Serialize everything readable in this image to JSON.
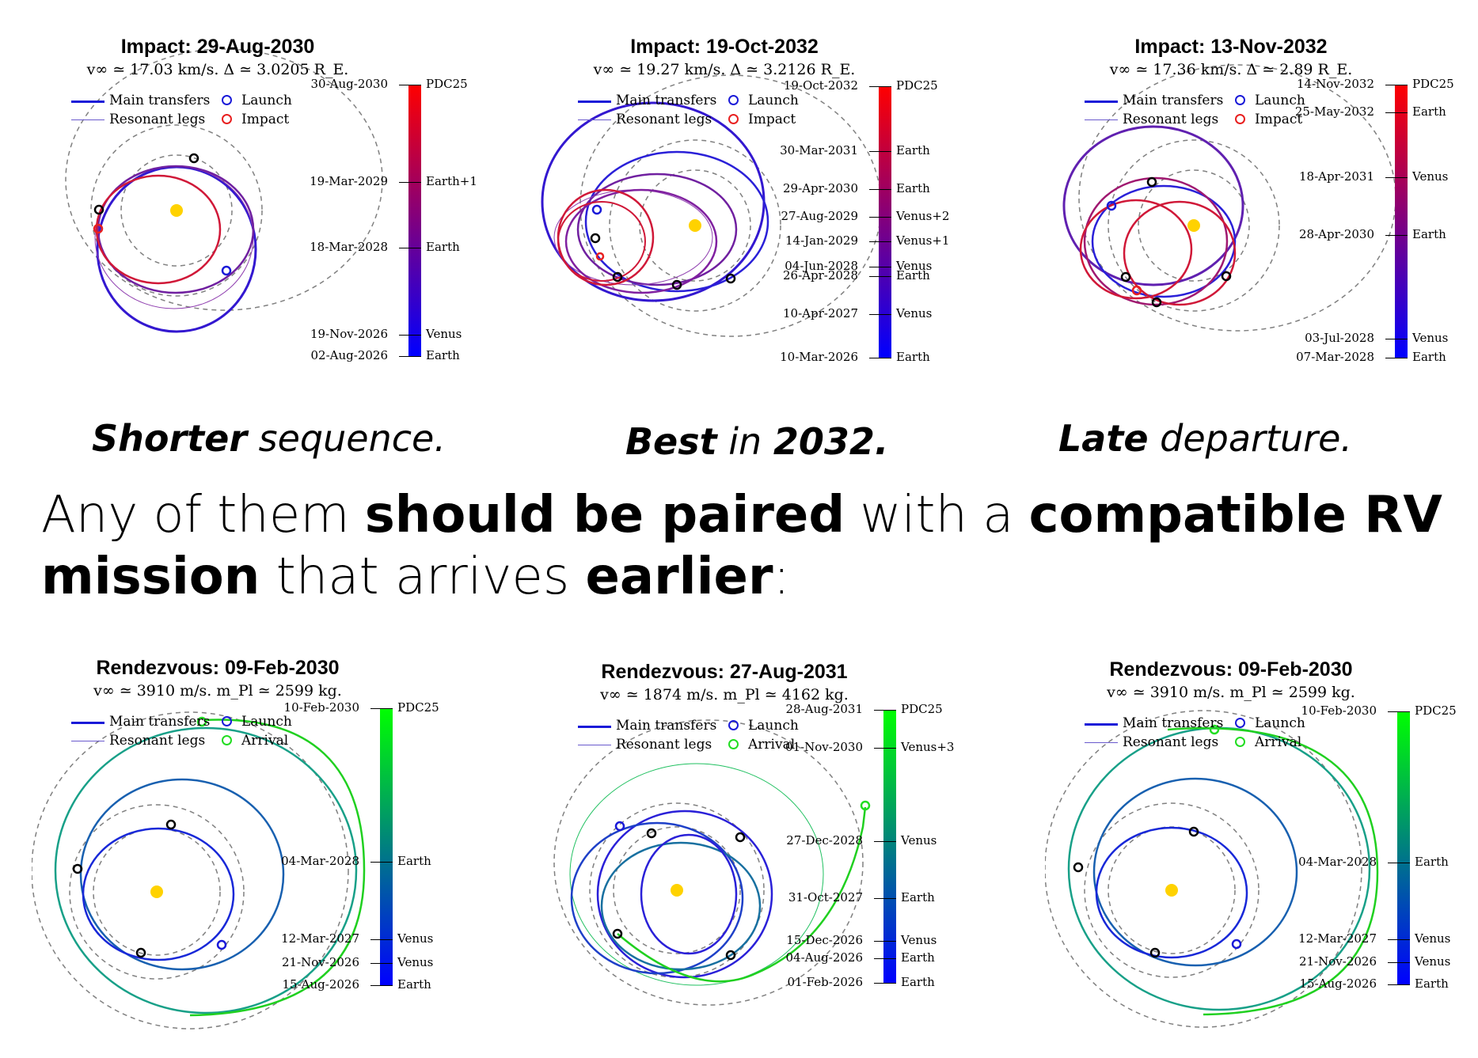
{
  "labels": {
    "main_transfers": "Main transfers",
    "resonant_legs": "Resonant legs",
    "launch": "Launch",
    "impact": "Impact",
    "arrival": "Arrival"
  },
  "captions": {
    "c1_bold": "Shorter",
    "c1_rest": " sequence.",
    "c2_bold1": "Best",
    "c2_mid": " in ",
    "c2_bold2": "2032.",
    "c3_bold": "Late",
    "c3_rest": " departure."
  },
  "headline": {
    "w1": "Any",
    "w2": "of",
    "w3": "them",
    "w4": "should be paired",
    "w5": "with",
    "w6": "a",
    "w7": "compatible RV",
    "w8": "mission",
    "w9": " that arrives ",
    "w10": "earlier",
    "w11": ":"
  },
  "colors": {
    "sun": "#ffd200",
    "orbit_dashed": "#808080",
    "launch": "#1a1ad8",
    "impact": "#e82020",
    "arrival": "#22dd22"
  },
  "panels": [
    {
      "title": "Impact: 29-Aug-2030",
      "subtitle": "v∞ ≃ 17.03 km/s. Δ ≃ 3.0205 R_E.",
      "end_marker": "Impact",
      "colormap": [
        "#0000ff",
        "#ff0000"
      ],
      "ticks": [
        {
          "date": "30-Aug-2030",
          "body": "PDC25",
          "frac": 1.0
        },
        {
          "date": "19-Mar-2029",
          "body": "Earth+1",
          "frac": 0.64
        },
        {
          "date": "18-Mar-2028",
          "body": "Earth",
          "frac": 0.4
        },
        {
          "date": "19-Nov-2026",
          "body": "Venus",
          "frac": 0.08
        },
        {
          "date": "02-Aug-2026",
          "body": "Earth",
          "frac": 0.0
        }
      ]
    },
    {
      "title": "Impact: 19-Oct-2032",
      "subtitle": "v∞ ≃ 19.27 km/s. Δ ≃ 3.2126 R_E.",
      "end_marker": "Impact",
      "colormap": [
        "#0000ff",
        "#ff0000"
      ],
      "ticks": [
        {
          "date": "19-Oct-2032",
          "body": "PDC25",
          "frac": 1.0
        },
        {
          "date": "30-Mar-2031",
          "body": "Earth",
          "frac": 0.76
        },
        {
          "date": "29-Apr-2030",
          "body": "Earth",
          "frac": 0.62
        },
        {
          "date": "27-Aug-2029",
          "body": "Venus+2",
          "frac": 0.52
        },
        {
          "date": "14-Jan-2029",
          "body": "Venus+1",
          "frac": 0.43
        },
        {
          "date": "04-Jun-2028",
          "body": "Venus",
          "frac": 0.335
        },
        {
          "date": "26-Apr-2028",
          "body": "Earth",
          "frac": 0.3
        },
        {
          "date": "10-Apr-2027",
          "body": "Venus",
          "frac": 0.16
        },
        {
          "date": "10-Mar-2026",
          "body": "Earth",
          "frac": 0.0
        }
      ]
    },
    {
      "title": "Impact: 13-Nov-2032",
      "subtitle": "v∞ ≃ 17.36 km/s. Δ ≃ 2.89 R_E.",
      "end_marker": "Impact",
      "colormap": [
        "#0000ff",
        "#ff0000"
      ],
      "ticks": [
        {
          "date": "14-Nov-2032",
          "body": "PDC25",
          "frac": 1.0
        },
        {
          "date": "25-May-2032",
          "body": "Earth",
          "frac": 0.9
        },
        {
          "date": "18-Apr-2031",
          "body": "Venus",
          "frac": 0.66
        },
        {
          "date": "28-Apr-2030",
          "body": "Earth",
          "frac": 0.45
        },
        {
          "date": "03-Jul-2028",
          "body": "Venus",
          "frac": 0.07
        },
        {
          "date": "07-Mar-2028",
          "body": "Earth",
          "frac": 0.0
        }
      ]
    },
    {
      "title": "Rendezvous: 09-Feb-2030",
      "subtitle": "v∞ ≃ 3910 m/s. m_Pl ≃ 2599 kg.",
      "end_marker": "Arrival",
      "colormap": [
        "#0000ff",
        "#00ff00"
      ],
      "ticks": [
        {
          "date": "10-Feb-2030",
          "body": "PDC25",
          "frac": 1.0
        },
        {
          "date": "04-Mar-2028",
          "body": "Earth",
          "frac": 0.445
        },
        {
          "date": "12-Mar-2027",
          "body": "Venus",
          "frac": 0.165
        },
        {
          "date": "21-Nov-2026",
          "body": "Venus",
          "frac": 0.08
        },
        {
          "date": "15-Aug-2026",
          "body": "Earth",
          "frac": 0.0
        }
      ]
    },
    {
      "title": "Rendezvous: 27-Aug-2031",
      "subtitle": "v∞ ≃ 1874 m/s. m_Pl ≃ 4162 kg.",
      "end_marker": "Arrival",
      "colormap": [
        "#0000ff",
        "#00ff00"
      ],
      "ticks": [
        {
          "date": "28-Aug-2031",
          "body": "PDC25",
          "frac": 1.0
        },
        {
          "date": "01-Nov-2030",
          "body": "Venus+3",
          "frac": 0.86
        },
        {
          "date": "27-Dec-2028",
          "body": "Venus",
          "frac": 0.52
        },
        {
          "date": "31-Oct-2027",
          "body": "Earth",
          "frac": 0.31
        },
        {
          "date": "15-Dec-2026",
          "body": "Venus",
          "frac": 0.155
        },
        {
          "date": "04-Aug-2026",
          "body": "Earth",
          "frac": 0.09
        },
        {
          "date": "01-Feb-2026",
          "body": "Earth",
          "frac": 0.0
        }
      ]
    },
    {
      "title": "Rendezvous: 09-Feb-2030",
      "subtitle": "v∞ ≃ 3910 m/s. m_Pl ≃ 2599 kg.",
      "end_marker": "Arrival",
      "colormap": [
        "#0000ff",
        "#00ff00"
      ],
      "ticks": [
        {
          "date": "10-Feb-2030",
          "body": "PDC25",
          "frac": 1.0
        },
        {
          "date": "04-Mar-2028",
          "body": "Earth",
          "frac": 0.445
        },
        {
          "date": "12-Mar-2027",
          "body": "Venus",
          "frac": 0.165
        },
        {
          "date": "21-Nov-2026",
          "body": "Venus",
          "frac": 0.08
        },
        {
          "date": "15-Aug-2026",
          "body": "Earth",
          "frac": 0.0
        }
      ]
    }
  ]
}
